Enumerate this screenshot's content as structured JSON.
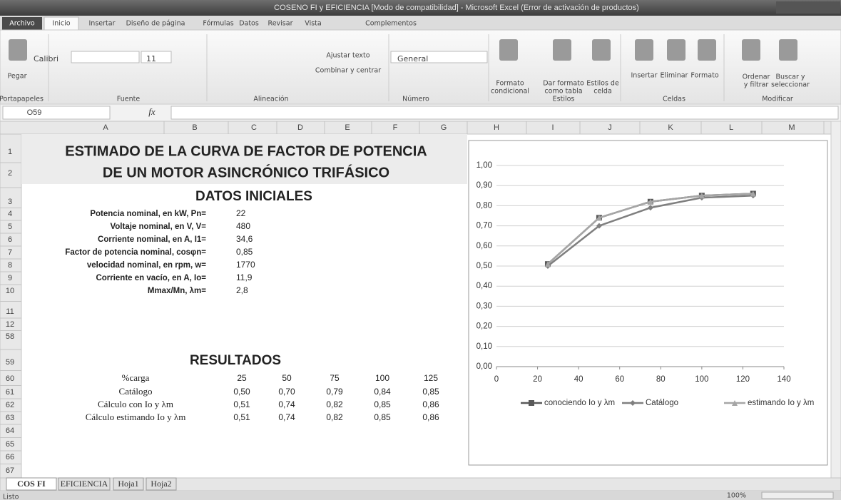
{
  "window": {
    "title": "COSENO FI y EFICIENCIA  [Modo de compatibilidad] - Microsoft Excel (Error de activación de productos)"
  },
  "ribbon": {
    "tabs": [
      "Archivo",
      "Inicio",
      "Insertar",
      "Diseño de página",
      "Fórmulas",
      "Datos",
      "Revisar",
      "Vista",
      "Complementos"
    ],
    "font_name": "Calibri",
    "font_size": "11",
    "number_format": "General",
    "buttons": [
      "Pegar",
      "Ajustar texto",
      "Combinar y centrar",
      "Formato",
      "condicional",
      "Dar formato",
      "como tabla",
      "Estilos de",
      "celda",
      "Insertar",
      "Eliminar",
      "Formato",
      "Ordenar",
      "y filtrar",
      "Buscar y",
      "seleccionar"
    ],
    "groups": [
      "Portapapeles",
      "Fuente",
      "Alineación",
      "Número",
      "Estilos",
      "Celdas",
      "Modificar"
    ]
  },
  "formula_bar": {
    "name_box": "O59",
    "fx": "fx"
  },
  "sheet": {
    "columns": [
      "A",
      "B",
      "C",
      "D",
      "E",
      "F",
      "G",
      "H",
      "I",
      "J",
      "K",
      "L",
      "M"
    ],
    "rows": [
      "1",
      "2",
      "3",
      "4",
      "5",
      "6",
      "7",
      "8",
      "9",
      "10",
      "11",
      "12",
      "58",
      "59",
      "60",
      "61",
      "62",
      "63",
      "64",
      "65",
      "66",
      "67"
    ],
    "title": [
      "ESTIMADO DE LA CURVA DE FACTOR DE POTENCIA",
      "DE UN MOTOR ASINCRÓNICO TRIFÁSICO"
    ],
    "datos_title": "DATOS INICIALES",
    "parameters": [
      {
        "label": "Potencia nominal, en kW, Pn=",
        "value": "22"
      },
      {
        "label": "Voltaje nominal, en V, V=",
        "value": "480"
      },
      {
        "label": "Corriente nominal, en A, I1=",
        "value": "34,6"
      },
      {
        "label": "Factor de potencia nominal, cosφn=",
        "value": "0,85"
      },
      {
        "label": "velocidad nominal, en rpm, w=",
        "value": "1770"
      },
      {
        "label": "Corriente en vacío, en A,  Io=",
        "value": "11,9"
      },
      {
        "label": "Mmax/Mn, λm=",
        "value": "2,8"
      }
    ],
    "resultados_title": "RESULTADOS",
    "results": {
      "header": [
        "%carga",
        "25",
        "50",
        "75",
        "100",
        "125"
      ],
      "rows": [
        [
          "Catálogo",
          "0,50",
          "0,70",
          "0,79",
          "0,84",
          "0,85"
        ],
        [
          "Cálculo con Io y λm",
          "0,51",
          "0,74",
          "0,82",
          "0,85",
          "0,86"
        ],
        [
          "Cálculo estimando Io y λm",
          "0,51",
          "0,74",
          "0,82",
          "0,85",
          "0,86"
        ]
      ]
    }
  },
  "sheet_tabs": [
    "COS FI",
    "EFICIENCIA",
    "Hoja1",
    "Hoja2"
  ],
  "status": {
    "ready": "Listo",
    "zoom": "100%"
  },
  "chart_data": {
    "type": "line",
    "x": [
      25,
      50,
      75,
      100,
      125
    ],
    "series": [
      {
        "name": "conociendo Io y λm",
        "color": "#595959",
        "marker": "square",
        "values": [
          0.51,
          0.74,
          0.82,
          0.85,
          0.86
        ]
      },
      {
        "name": "Catálogo",
        "color": "#7f7f7f",
        "marker": "diamond",
        "values": [
          0.5,
          0.7,
          0.79,
          0.84,
          0.85
        ]
      },
      {
        "name": "estimando Io y λm",
        "color": "#a6a6a6",
        "marker": "triangle",
        "values": [
          0.51,
          0.74,
          0.82,
          0.85,
          0.86
        ]
      }
    ],
    "xlim": [
      0,
      140
    ],
    "xticks": [
      0,
      20,
      40,
      60,
      80,
      100,
      120,
      140
    ],
    "ylim": [
      0,
      1
    ],
    "yticks": [
      {
        "value": 0,
        "label": "0,00"
      },
      {
        "value": 0.1,
        "label": "0,10"
      },
      {
        "value": 0.2,
        "label": "0,20"
      },
      {
        "value": 0.3,
        "label": "0,30"
      },
      {
        "value": 0.4,
        "label": "0,40"
      },
      {
        "value": 0.5,
        "label": "0,50"
      },
      {
        "value": 0.6,
        "label": "0,60"
      },
      {
        "value": 0.7,
        "label": "0,70"
      },
      {
        "value": 0.8,
        "label": "0,80"
      },
      {
        "value": 0.9,
        "label": "0,90"
      },
      {
        "value": 1,
        "label": "1,00"
      }
    ],
    "grid": true,
    "legend": "bottom"
  }
}
